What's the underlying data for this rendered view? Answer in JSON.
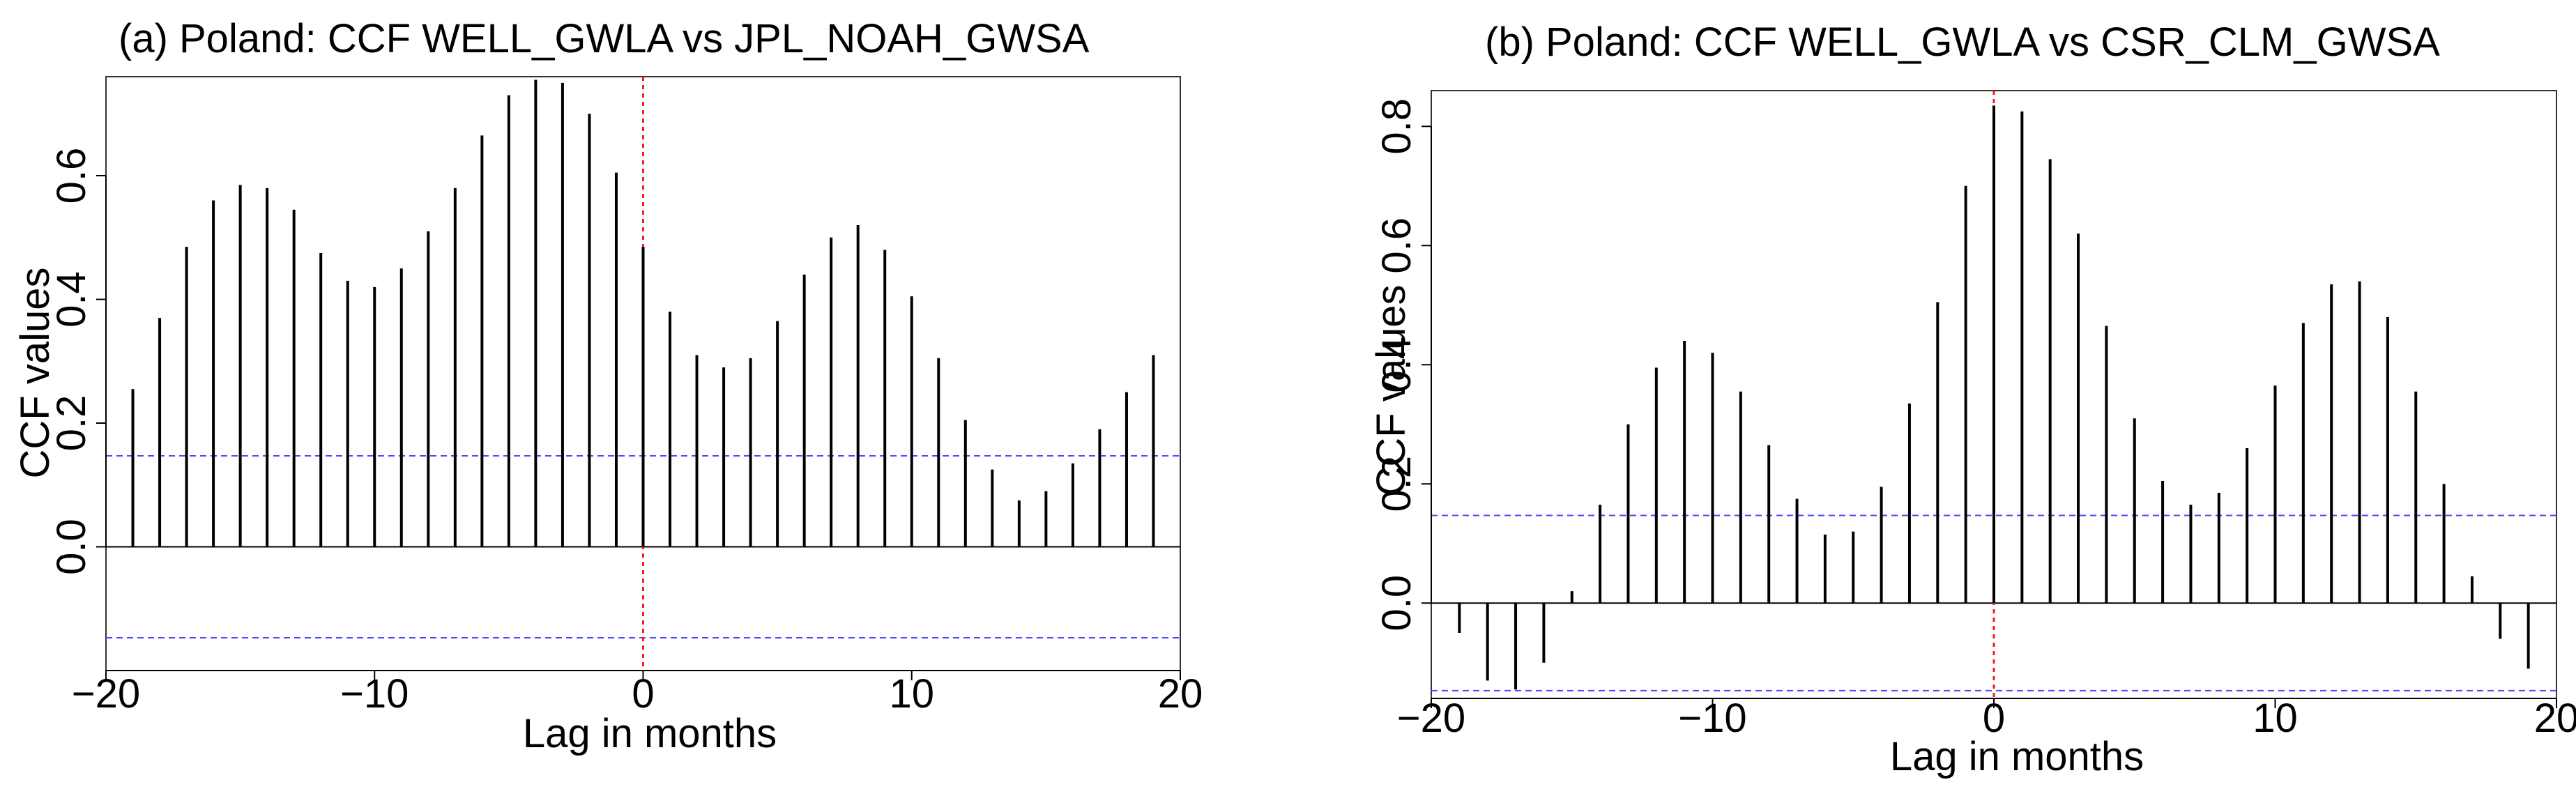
{
  "chart_data": [
    {
      "type": "bar",
      "title": "(a) Poland: CCF WELL_GWLA vs JPL_NOAH_GWSA",
      "xlabel": "Lag in months",
      "ylabel": "CCF values",
      "xlim": [
        -20,
        20
      ],
      "ylim": [
        -0.2,
        0.76
      ],
      "xticks": [
        -20,
        -10,
        0,
        10,
        20
      ],
      "xtick_labels": [
        "−20",
        "−10",
        "0",
        "10",
        "20"
      ],
      "yticks": [
        0.0,
        0.2,
        0.4,
        0.6
      ],
      "ytick_labels": [
        "0.0",
        "0.2",
        "0.4",
        "0.6"
      ],
      "confidence_bound": 0.147,
      "lags": [
        -19,
        -18,
        -17,
        -16,
        -15,
        -14,
        -13,
        -12,
        -11,
        -10,
        -9,
        -8,
        -7,
        -6,
        -5,
        -4,
        -3,
        -2,
        -1,
        0,
        1,
        2,
        3,
        4,
        5,
        6,
        7,
        8,
        9,
        10,
        11,
        12,
        13,
        14,
        15,
        16,
        17,
        18,
        19
      ],
      "values": [
        0.255,
        0.37,
        0.485,
        0.56,
        0.585,
        0.58,
        0.545,
        0.475,
        0.43,
        0.42,
        0.45,
        0.51,
        0.58,
        0.665,
        0.73,
        0.755,
        0.75,
        0.7,
        0.605,
        0.485,
        0.38,
        0.31,
        0.29,
        0.305,
        0.365,
        0.44,
        0.5,
        0.52,
        0.48,
        0.405,
        0.305,
        0.205,
        0.125,
        0.075,
        0.09,
        0.135,
        0.19,
        0.25,
        0.31
      ]
    },
    {
      "type": "bar",
      "title": "(b) Poland: CCF WELL_GWLA vs CSR_CLM_GWSA",
      "xlabel": "Lag in months",
      "ylabel": "CCF values",
      "xlim": [
        -20,
        20
      ],
      "ylim": [
        -0.16,
        0.86
      ],
      "xticks": [
        -20,
        -10,
        0,
        10,
        20
      ],
      "xtick_labels": [
        "−20",
        "−10",
        "0",
        "10",
        "20"
      ],
      "yticks": [
        0.0,
        0.2,
        0.4,
        0.6,
        0.8
      ],
      "ytick_labels": [
        "0.0",
        "0.2",
        "0.4",
        "0.6",
        "0.8"
      ],
      "confidence_bound": 0.147,
      "lags": [
        -19,
        -18,
        -17,
        -16,
        -15,
        -14,
        -13,
        -12,
        -11,
        -10,
        -9,
        -8,
        -7,
        -6,
        -5,
        -4,
        -3,
        -2,
        -1,
        0,
        1,
        2,
        3,
        4,
        5,
        6,
        7,
        8,
        9,
        10,
        11,
        12,
        13,
        14,
        15,
        16,
        17,
        18,
        19
      ],
      "values": [
        -0.05,
        -0.13,
        -0.145,
        -0.1,
        0.02,
        0.165,
        0.3,
        0.395,
        0.44,
        0.42,
        0.355,
        0.265,
        0.175,
        0.115,
        0.12,
        0.195,
        0.335,
        0.505,
        0.7,
        0.835,
        0.825,
        0.745,
        0.62,
        0.465,
        0.31,
        0.205,
        0.165,
        0.185,
        0.26,
        0.365,
        0.47,
        0.535,
        0.54,
        0.48,
        0.355,
        0.2,
        0.045,
        -0.06,
        -0.11
      ]
    }
  ],
  "colors": {
    "spike": "#000000",
    "zero_line": "#000000",
    "confidence_line": "#4a4aff",
    "lag0_line": "#ff1a1a",
    "frame": "#333333"
  }
}
